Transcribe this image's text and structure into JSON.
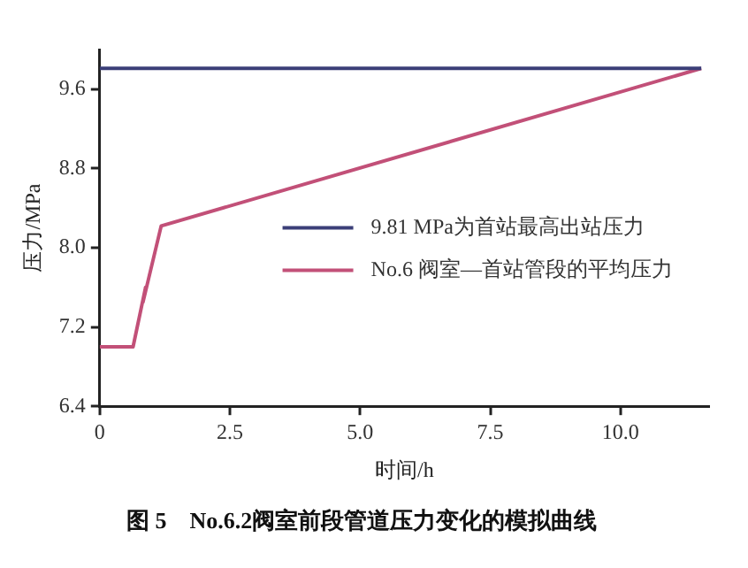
{
  "chart_data": {
    "type": "line",
    "title": "图 5　No.6.2阀室前段管道压力变化的模拟曲线",
    "xlabel": "时间/h",
    "ylabel": "压力/MPa",
    "xlim": [
      0,
      11.7
    ],
    "xticks": [
      0,
      2.5,
      {
        "value": 5,
        "label": "5.0"
      },
      {
        "value": 7.5,
        "label": "7.5"
      },
      {
        "value": 10,
        "label": "10.0"
      }
    ],
    "ylim": [
      6.4,
      10.0
    ],
    "yticks": [
      6.4,
      7.2,
      {
        "value": 8,
        "label": "8.0"
      },
      8.8,
      9.6
    ],
    "grid": false,
    "legend": "right",
    "marker": "none",
    "line_style": "solid",
    "series": [
      {
        "name": "9.81 MPa为首站最高出站压力",
        "color": "#3b3f78",
        "x": [
          0,
          11.55
        ],
        "values": [
          9.81,
          9.81
        ]
      },
      {
        "name": "No.6 阀室—首站管段的平均压力",
        "color": "#c25078",
        "x": [
          0,
          0.64,
          0.88,
          0.83,
          1.18,
          11.55
        ],
        "values": [
          7.0,
          7.0,
          7.6,
          7.45,
          8.22,
          9.81
        ]
      }
    ]
  }
}
